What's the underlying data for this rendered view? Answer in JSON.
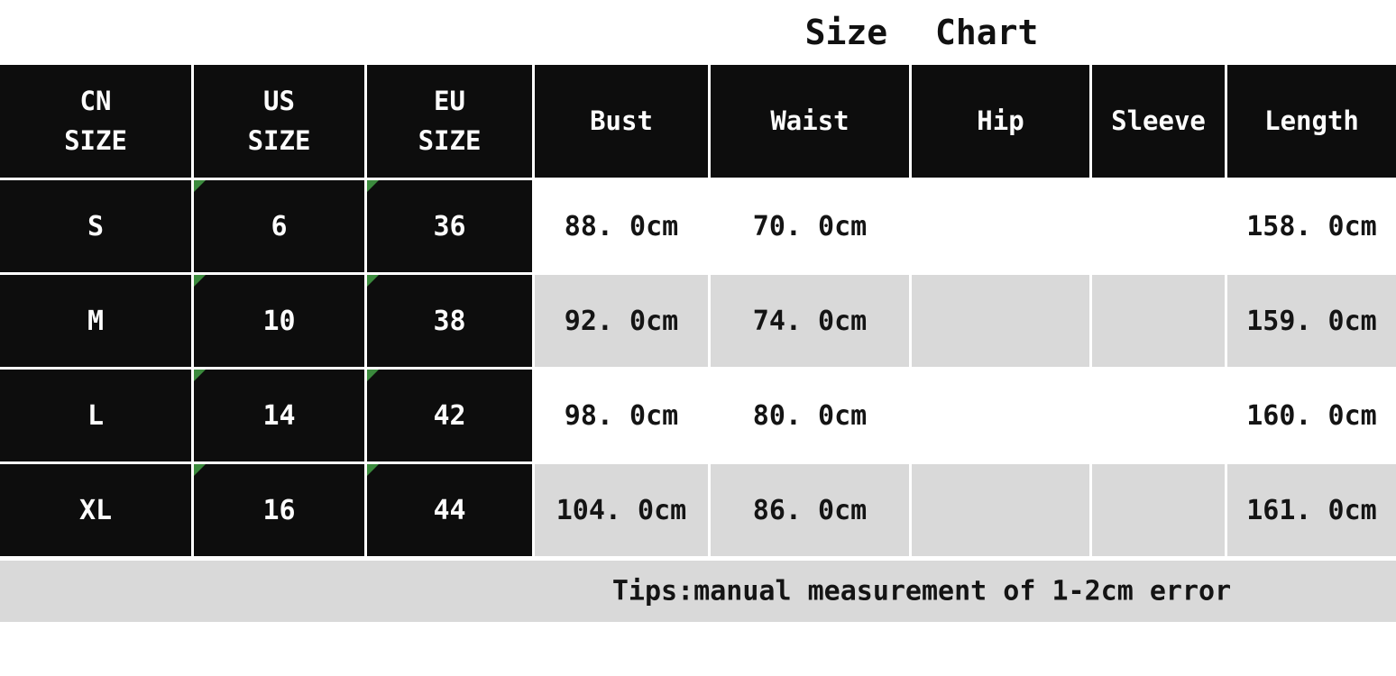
{
  "title": "Size Chart",
  "table": {
    "headers": [
      "CN\nSIZE",
      "US\nSIZE",
      "EU\nSIZE",
      "Bust",
      "Waist",
      "Hip",
      "Sleeve",
      "Length"
    ],
    "rows": [
      [
        "S",
        "6",
        "36",
        "88. 0cm",
        "70. 0cm",
        "",
        "",
        "158. 0cm"
      ],
      [
        "M",
        "10",
        "38",
        "92. 0cm",
        "74. 0cm",
        "",
        "",
        "159. 0cm"
      ],
      [
        "L",
        "14",
        "42",
        "98. 0cm",
        "80. 0cm",
        "",
        "",
        "160. 0cm"
      ],
      [
        "XL",
        "16",
        "44",
        "104. 0cm",
        "86. 0cm",
        "",
        "",
        "161. 0cm"
      ]
    ]
  },
  "footer": {
    "tips": "Tips:manual measurement of 1-2cm error"
  },
  "colors": {
    "cell_dark": "#0d0d0d",
    "row_shade": "#d9d9d9",
    "flag_green": "#3b8a3d"
  },
  "chart_data": {
    "type": "table",
    "title": "Size Chart",
    "columns": [
      "CN SIZE",
      "US SIZE",
      "EU SIZE",
      "Bust",
      "Waist",
      "Hip",
      "Sleeve",
      "Length"
    ],
    "rows": [
      [
        "S",
        "6",
        "36",
        "88.0cm",
        "70.0cm",
        "",
        "",
        "158.0cm"
      ],
      [
        "M",
        "10",
        "38",
        "92.0cm",
        "74.0cm",
        "",
        "",
        "159.0cm"
      ],
      [
        "L",
        "14",
        "42",
        "98.0cm",
        "80.0cm",
        "",
        "",
        "160.0cm"
      ],
      [
        "XL",
        "16",
        "44",
        "104.0cm",
        "86.0cm",
        "",
        "",
        "161.0cm"
      ]
    ],
    "note": "Tips:manual measurement of 1-2cm error"
  }
}
